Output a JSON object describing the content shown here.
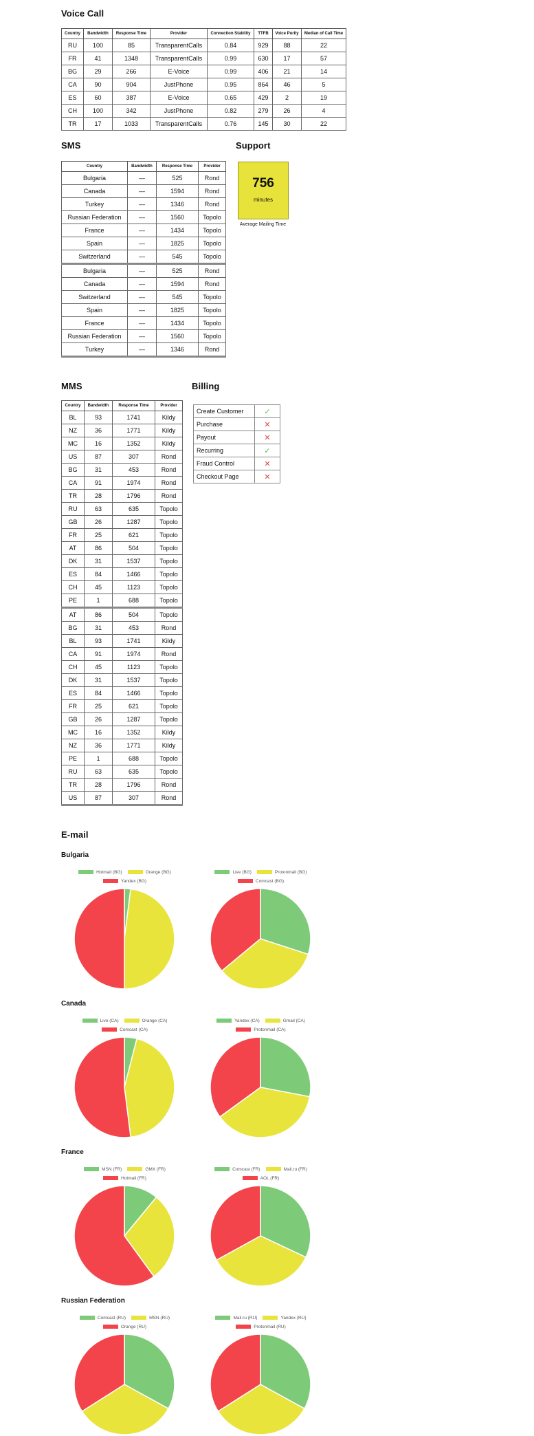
{
  "colors": {
    "green": "#7dcb79",
    "yellow": "#e8e43c",
    "red": "#f2444a",
    "check": "#5cc05a",
    "cross": "#e04848",
    "support_bg": "#e8e33a"
  },
  "voice_call": {
    "title": "Voice Call",
    "headers": [
      "Country",
      "Bandwidth",
      "Response Time",
      "Provider",
      "Connection Stability",
      "TTFB",
      "Voice Purity",
      "Median of Call Time"
    ],
    "rows": [
      [
        "RU",
        "100",
        "85",
        "TransparentCalls",
        "0.84",
        "929",
        "88",
        "22"
      ],
      [
        "FR",
        "41",
        "1348",
        "TransparentCalls",
        "0.99",
        "630",
        "17",
        "57"
      ],
      [
        "BG",
        "29",
        "266",
        "E-Voice",
        "0.99",
        "406",
        "21",
        "14"
      ],
      [
        "CA",
        "90",
        "904",
        "JustPhone",
        "0.95",
        "864",
        "46",
        "5"
      ],
      [
        "ES",
        "60",
        "387",
        "E-Voice",
        "0.65",
        "429",
        "2",
        "19"
      ],
      [
        "CH",
        "100",
        "342",
        "JustPhone",
        "0.82",
        "279",
        "26",
        "4"
      ],
      [
        "TR",
        "17",
        "1033",
        "TransparentCalls",
        "0.76",
        "145",
        "30",
        "22"
      ]
    ]
  },
  "sms": {
    "title": "SMS",
    "headers": [
      "Country",
      "Bandwidth",
      "Response Time",
      "Provider"
    ],
    "groups": [
      [
        [
          "Bulgaria",
          "—",
          "525",
          "Rond"
        ],
        [
          "Canada",
          "—",
          "1594",
          "Rond"
        ],
        [
          "Turkey",
          "—",
          "1346",
          "Rond"
        ],
        [
          "Russian Federation",
          "—",
          "1560",
          "Topolo"
        ],
        [
          "France",
          "—",
          "1434",
          "Topolo"
        ],
        [
          "Spain",
          "—",
          "1825",
          "Topolo"
        ],
        [
          "Switzerland",
          "—",
          "545",
          "Topolo"
        ]
      ],
      [
        [
          "Bulgaria",
          "—",
          "525",
          "Rond"
        ],
        [
          "Canada",
          "—",
          "1594",
          "Rond"
        ],
        [
          "Switzerland",
          "—",
          "545",
          "Topolo"
        ],
        [
          "Spain",
          "—",
          "1825",
          "Topolo"
        ],
        [
          "France",
          "—",
          "1434",
          "Topolo"
        ],
        [
          "Russian Federation",
          "—",
          "1560",
          "Topolo"
        ],
        [
          "Turkey",
          "—",
          "1346",
          "Rond"
        ]
      ]
    ]
  },
  "support": {
    "title": "Support",
    "value": "756",
    "unit": "minutes",
    "caption": "Average Mailing Time"
  },
  "mms": {
    "title": "MMS",
    "headers": [
      "Country",
      "Bandwidth",
      "Response Time",
      "Provider"
    ],
    "groups": [
      [
        [
          "BL",
          "93",
          "1741",
          "Kildy"
        ],
        [
          "NZ",
          "36",
          "1771",
          "Kildy"
        ],
        [
          "MC",
          "16",
          "1352",
          "Kildy"
        ],
        [
          "US",
          "87",
          "307",
          "Rond"
        ],
        [
          "BG",
          "31",
          "453",
          "Rond"
        ],
        [
          "CA",
          "91",
          "1974",
          "Rond"
        ],
        [
          "TR",
          "28",
          "1796",
          "Rond"
        ],
        [
          "RU",
          "63",
          "635",
          "Topolo"
        ],
        [
          "GB",
          "26",
          "1287",
          "Topolo"
        ],
        [
          "FR",
          "25",
          "621",
          "Topolo"
        ],
        [
          "AT",
          "86",
          "504",
          "Topolo"
        ],
        [
          "DK",
          "31",
          "1537",
          "Topolo"
        ],
        [
          "ES",
          "84",
          "1466",
          "Topolo"
        ],
        [
          "CH",
          "45",
          "1123",
          "Topolo"
        ],
        [
          "PE",
          "1",
          "688",
          "Topolo"
        ]
      ],
      [
        [
          "AT",
          "86",
          "504",
          "Topolo"
        ],
        [
          "BG",
          "31",
          "453",
          "Rond"
        ],
        [
          "BL",
          "93",
          "1741",
          "Kildy"
        ],
        [
          "CA",
          "91",
          "1974",
          "Rond"
        ],
        [
          "CH",
          "45",
          "1123",
          "Topolo"
        ],
        [
          "DK",
          "31",
          "1537",
          "Topolo"
        ],
        [
          "ES",
          "84",
          "1466",
          "Topolo"
        ],
        [
          "FR",
          "25",
          "621",
          "Topolo"
        ],
        [
          "GB",
          "26",
          "1287",
          "Topolo"
        ],
        [
          "MC",
          "16",
          "1352",
          "Kildy"
        ],
        [
          "NZ",
          "36",
          "1771",
          "Kildy"
        ],
        [
          "PE",
          "1",
          "688",
          "Topolo"
        ],
        [
          "RU",
          "63",
          "635",
          "Topolo"
        ],
        [
          "TR",
          "28",
          "1796",
          "Rond"
        ],
        [
          "US",
          "87",
          "307",
          "Rond"
        ]
      ]
    ]
  },
  "billing": {
    "title": "Billing",
    "items": [
      {
        "label": "Create Customer",
        "status": "check-icon"
      },
      {
        "label": "Purchase",
        "status": "cross-icon"
      },
      {
        "label": "Payout",
        "status": "cross-icon"
      },
      {
        "label": "Recurring",
        "status": "check-icon"
      },
      {
        "label": "Fraud Control",
        "status": "cross-icon"
      },
      {
        "label": "Checkout Page",
        "status": "cross-icon"
      }
    ]
  },
  "email": {
    "title": "E-mail",
    "countries": [
      {
        "name": "Bulgaria",
        "charts": [
          {
            "labels": [
              "Hotmail (BG)",
              "Orange (BG)",
              "Yandex (BG)"
            ],
            "values": [
              2,
              48,
              50
            ]
          },
          {
            "labels": [
              "Live (BG)",
              "Protonmail (BG)",
              "Comcast (BG)"
            ],
            "values": [
              30,
              34,
              36
            ]
          }
        ]
      },
      {
        "name": "Canada",
        "charts": [
          {
            "labels": [
              "Live (CA)",
              "Orange (CA)",
              "Comcast (CA)"
            ],
            "values": [
              4,
              44,
              52
            ]
          },
          {
            "labels": [
              "Yandex (CA)",
              "Gmail (CA)",
              "Protonmail (CA)"
            ],
            "values": [
              28,
              37,
              35
            ]
          }
        ]
      },
      {
        "name": "France",
        "charts": [
          {
            "labels": [
              "MSN (FR)",
              "GMX (FR)",
              "Hotmail (FR)"
            ],
            "values": [
              11,
              29,
              60
            ]
          },
          {
            "labels": [
              "Comcast (FR)",
              "Mail.ru (FR)",
              "AOL (FR)"
            ],
            "values": [
              32,
              35,
              33
            ]
          }
        ]
      },
      {
        "name": "Russian Federation",
        "charts": [
          {
            "labels": [
              "Comcast (RU)",
              "MSN (RU)",
              "Orange (RU)"
            ],
            "values": [
              33,
              33,
              34
            ]
          },
          {
            "labels": [
              "Mail.ru (RU)",
              "Yandex (RU)",
              "Protonmail (RU)"
            ],
            "values": [
              33,
              33,
              34
            ]
          }
        ]
      }
    ]
  }
}
